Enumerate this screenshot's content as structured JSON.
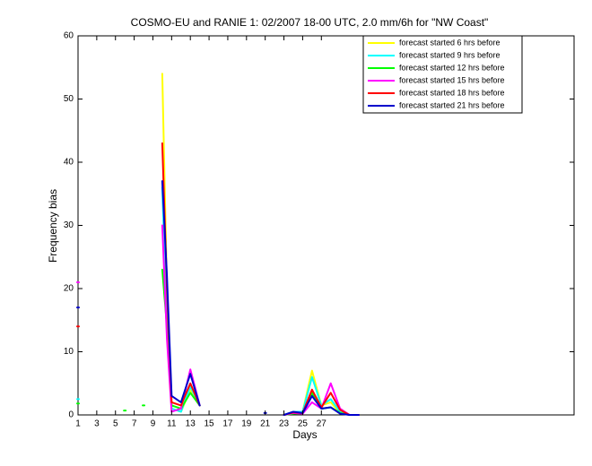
{
  "chart_data": {
    "type": "line",
    "title": "COSMO-EU and RANIE 1: 02/2007 18-00 UTC, 2.0 mm/6h for \"NW Coast\"",
    "x_label": "Days",
    "y_label": "Frequency bias",
    "x": [
      1,
      2,
      6,
      7,
      8,
      9,
      10,
      10.5,
      11,
      12,
      13,
      14,
      15,
      21,
      22,
      23,
      24,
      25,
      26,
      27,
      28,
      29,
      30,
      31
    ],
    "series": [
      {
        "name": "forecast started 6 hrs before",
        "color": "#ffff00",
        "values": [
          null,
          null,
          null,
          null,
          null,
          null,
          54,
          20,
          1,
          0.5,
          4,
          1.5,
          null,
          null,
          null,
          0,
          0.3,
          0.5,
          7,
          1.5,
          2,
          0.3,
          0,
          0
        ]
      },
      {
        "name": "forecast started 9 hrs before",
        "color": "#00ffff",
        "values": [
          2.5,
          null,
          null,
          null,
          null,
          null,
          36,
          15,
          1,
          0.5,
          4.5,
          1.5,
          null,
          null,
          null,
          0,
          0.5,
          0.5,
          6,
          1.5,
          2.5,
          0.5,
          0,
          0
        ]
      },
      {
        "name": "forecast started 12 hrs before",
        "color": "#00ff00",
        "values": [
          1.8,
          null,
          0.7,
          null,
          1.5,
          null,
          23,
          14,
          1.5,
          1,
          3.5,
          1.5,
          null,
          null,
          null,
          0,
          0.2,
          0.3,
          3.5,
          1,
          1.2,
          0.3,
          0,
          0
        ]
      },
      {
        "name": "forecast started 15 hrs before",
        "color": "#ff00ff",
        "values": [
          21,
          null,
          null,
          null,
          null,
          null,
          30,
          12,
          0.5,
          1,
          7.2,
          1.5,
          null,
          null,
          null,
          0,
          0.3,
          0.2,
          2,
          1,
          5,
          1,
          0,
          0
        ]
      },
      {
        "name": "forecast started 18 hrs before",
        "color": "#ff0000",
        "values": [
          14,
          null,
          null,
          null,
          null,
          null,
          43,
          20,
          2,
          1.5,
          5,
          1.5,
          null,
          null,
          null,
          0,
          0.4,
          0.3,
          4,
          1.2,
          3.5,
          0.8,
          0,
          0
        ]
      },
      {
        "name": "forecast started 21 hrs before",
        "color": "#0000cc",
        "values": [
          17,
          null,
          null,
          null,
          null,
          null,
          37,
          22,
          3,
          2,
          6.5,
          1.5,
          null,
          0.3,
          null,
          0,
          0.5,
          0.3,
          3,
          1,
          1.2,
          0.2,
          0,
          0
        ]
      }
    ],
    "xlim": [
      1,
      54
    ],
    "ylim": [
      0,
      60
    ],
    "xticks": [
      1,
      3,
      5,
      7,
      9,
      11,
      13,
      15,
      17,
      19,
      21,
      23,
      25,
      27
    ],
    "yticks": [
      0,
      10,
      20,
      30,
      40,
      50,
      60
    ],
    "legend": "upper right",
    "grid": false
  }
}
